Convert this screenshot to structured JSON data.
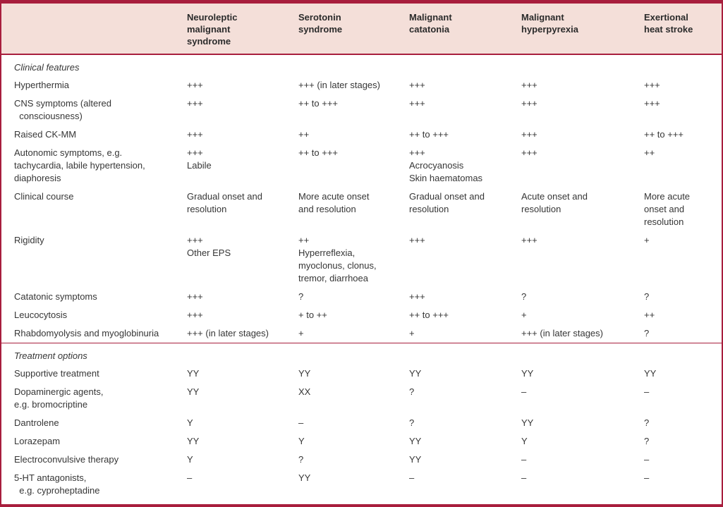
{
  "colors": {
    "accent": "#a81e3d",
    "header_bg": "#f4dfd9",
    "text": "#363636"
  },
  "table": {
    "columns": [
      "",
      "Neuroleptic\nmalignant\nsyndrome",
      "Serotonin\nsyndrome",
      "Malignant\ncatatonia",
      "Malignant\nhyperpyrexia",
      "Exertional\nheat stroke"
    ],
    "sections": [
      {
        "title": "Clinical features",
        "rows": [
          {
            "feature": "Hyperthermia",
            "values": [
              "+++",
              "+++ (in later stages)",
              "+++",
              "+++",
              "+++"
            ]
          },
          {
            "feature": "CNS symptoms (altered\n  consciousness)",
            "values": [
              "+++",
              "++ to +++",
              "+++",
              "+++",
              "+++"
            ]
          },
          {
            "feature": "Raised CK-MM",
            "values": [
              "+++",
              "++",
              "++ to +++",
              "+++",
              "++ to +++"
            ]
          },
          {
            "feature": "Autonomic symptoms, e.g.\ntachycardia, labile hypertension,\ndiaphoresis",
            "values": [
              "+++\nLabile",
              "++ to +++",
              "+++\nAcrocyanosis\nSkin haematomas",
              "+++",
              "++"
            ]
          },
          {
            "feature": "Clinical course",
            "values": [
              "Gradual onset and\nresolution",
              "More acute onset\nand resolution",
              "Gradual onset and\nresolution",
              "Acute onset and\nresolution",
              "More acute\nonset and\nresolution"
            ]
          },
          {
            "feature": "Rigidity",
            "values": [
              "+++\nOther EPS",
              "++\nHyperreflexia,\nmyoclonus, clonus,\ntremor, diarrhoea",
              "+++",
              "+++",
              "+"
            ]
          },
          {
            "feature": "Catatonic symptoms",
            "values": [
              "+++",
              "?",
              "+++",
              "?",
              "?"
            ]
          },
          {
            "feature": "Leucocytosis",
            "values": [
              "+++",
              "+ to ++",
              "++ to +++",
              "+",
              "++"
            ]
          },
          {
            "feature": "Rhabdomyolysis and myoglobinuria",
            "values": [
              "+++ (in later stages)",
              "+",
              "+",
              "+++ (in later stages)",
              "?"
            ]
          }
        ]
      },
      {
        "title": "Treatment options",
        "rows": [
          {
            "feature": "Supportive treatment",
            "values": [
              "YY",
              "YY",
              "YY",
              "YY",
              "YY"
            ]
          },
          {
            "feature": "Dopaminergic agents,\ne.g. bromocriptine",
            "values": [
              "YY",
              "XX",
              "?",
              "–",
              "–"
            ]
          },
          {
            "feature": "Dantrolene",
            "values": [
              "Y",
              "–",
              "?",
              "YY",
              "?"
            ]
          },
          {
            "feature": "Lorazepam",
            "values": [
              "YY",
              "Y",
              "YY",
              "Y",
              "?"
            ]
          },
          {
            "feature": "Electroconvulsive therapy",
            "values": [
              "Y",
              "?",
              "YY",
              "–",
              "–"
            ]
          },
          {
            "feature": "5-HT antagonists,\n  e.g. cyproheptadine",
            "values": [
              "–",
              "YY",
              "–",
              "–",
              "–"
            ]
          }
        ]
      }
    ]
  }
}
